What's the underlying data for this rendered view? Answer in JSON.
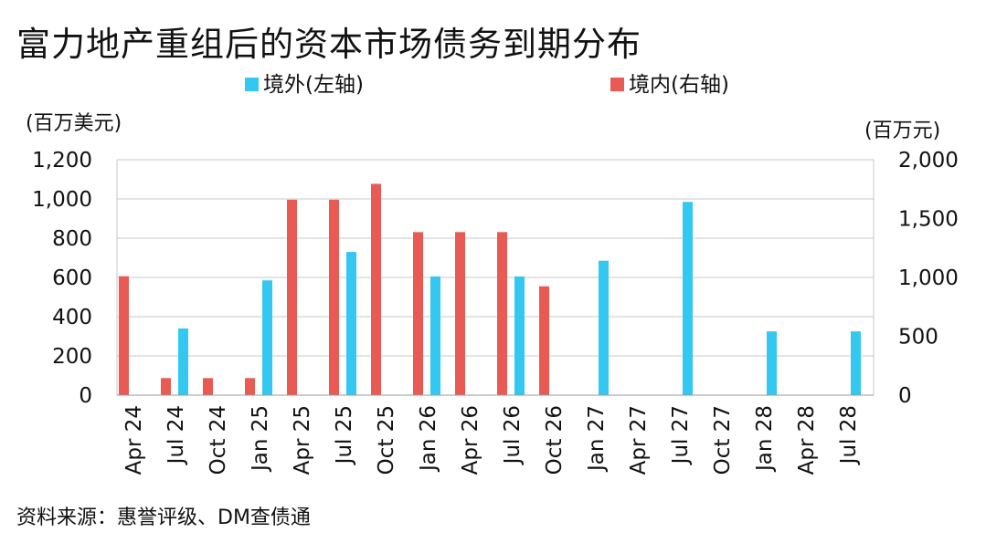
{
  "title": "富力地产重组后的资本市场债务到期分布",
  "source": "资料来源：惠誉评级、DM查债通",
  "chart_data": {
    "type": "bar",
    "title": "富力地产重组后的资本市场债务到期分布",
    "categories": [
      "Apr 24",
      "Jul 24",
      "Oct 24",
      "Jan 25",
      "Apr 25",
      "Jul 25",
      "Oct 25",
      "Jan 26",
      "Apr 26",
      "Jul 26",
      "Oct 26",
      "Jan 27",
      "Apr 27",
      "Jul 27",
      "Oct 27",
      "Jan 28",
      "Apr 28",
      "Jul 28"
    ],
    "left_unit": "(百万美元)",
    "right_unit": "(百万元)",
    "left_ylim": [
      0,
      1200
    ],
    "right_ylim": [
      0,
      2000
    ],
    "left_ticks": [
      "0",
      "200",
      "400",
      "600",
      "800",
      "1,000",
      "1,200"
    ],
    "right_ticks": [
      "0",
      "500",
      "1,000",
      "1,500",
      "2,000"
    ],
    "grid": true,
    "legend_position": "top",
    "series": [
      {
        "name": "境外(左轴)",
        "axis": "left",
        "color": "#33C8F2",
        "values": [
          0,
          340,
          0,
          585,
          0,
          730,
          0,
          605,
          0,
          605,
          0,
          685,
          0,
          985,
          0,
          325,
          0,
          325
        ]
      },
      {
        "name": "境内(右轴)",
        "axis": "right",
        "color": "#E95A55",
        "values": [
          1010,
          145,
          145,
          145,
          1660,
          1660,
          1795,
          1385,
          1385,
          1385,
          925,
          0,
          0,
          0,
          0,
          0,
          0,
          0
        ]
      }
    ]
  }
}
